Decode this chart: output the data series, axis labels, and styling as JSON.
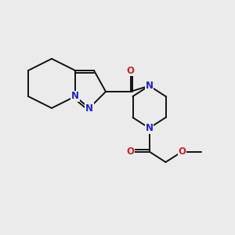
{
  "background_color": "#ebebeb",
  "bond_color": "#111111",
  "N_color": "#2222cc",
  "O_color": "#cc2222",
  "font_size_atom": 8.5,
  "line_width": 1.4,
  "xlim": [
    0.0,
    10.0
  ],
  "ylim": [
    1.0,
    9.0
  ]
}
